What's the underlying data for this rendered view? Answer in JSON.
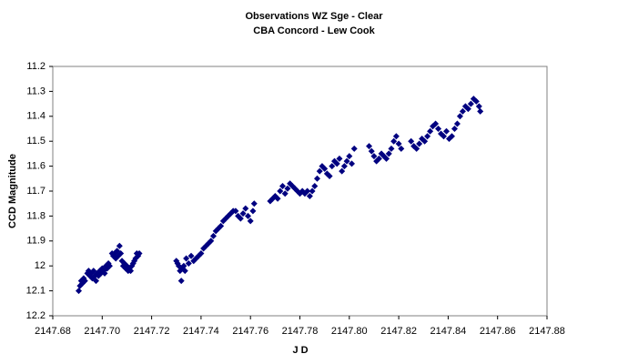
{
  "chart_data": {
    "type": "scatter",
    "title": "Observations WZ Sge - Clear",
    "subtitle": "CBA Concord - Lew Cook",
    "x_label": "J D",
    "y_label": "CCD Magnitude",
    "color": "#000080",
    "xlim": [
      2147.68,
      2147.88
    ],
    "xticks": [
      2147.68,
      {
        "value": 2147.7,
        "label": "2147.70"
      },
      2147.72,
      2147.74,
      2147.76,
      2147.78,
      {
        "value": 2147.8,
        "label": "2147.80"
      },
      2147.82,
      2147.84,
      2147.86,
      2147.88
    ],
    "ylim": [
      12.2,
      11.2
    ],
    "yticks": [
      11.2,
      11.3,
      11.4,
      11.5,
      11.6,
      11.7,
      11.8,
      11.9,
      12,
      12.1,
      12.2
    ],
    "grid": false,
    "x": [
      2147.6905,
      2147.691,
      2147.6915,
      2147.692,
      2147.6925,
      2147.693,
      2147.694,
      2147.6945,
      2147.695,
      2147.6955,
      2147.696,
      2147.6965,
      2147.697,
      2147.6975,
      2147.698,
      2147.6985,
      2147.699,
      2147.6995,
      2147.7,
      2147.7005,
      2147.701,
      2147.7015,
      2147.702,
      2147.7025,
      2147.703,
      2147.704,
      2147.7045,
      2147.705,
      2147.7055,
      2147.706,
      2147.7065,
      2147.707,
      2147.7075,
      2147.708,
      2147.7085,
      2147.709,
      2147.7095,
      2147.71,
      2147.7105,
      2147.711,
      2147.7115,
      2147.712,
      2147.7125,
      2147.713,
      2147.7135,
      2147.714,
      2147.7145,
      2147.715,
      2147.73,
      2147.7305,
      2147.731,
      2147.7315,
      2147.732,
      2147.7325,
      2147.733,
      2147.7335,
      2147.734,
      2147.735,
      2147.736,
      2147.737,
      2147.738,
      2147.739,
      2147.74,
      2147.741,
      2147.742,
      2147.743,
      2147.744,
      2147.745,
      2147.746,
      2147.747,
      2147.748,
      2147.749,
      2147.75,
      2147.751,
      2147.752,
      2147.753,
      2147.754,
      2147.755,
      2147.756,
      2147.757,
      2147.758,
      2147.759,
      2147.76,
      2147.761,
      2147.7615,
      2147.768,
      2147.769,
      2147.77,
      2147.771,
      2147.772,
      2147.773,
      2147.774,
      2147.775,
      2147.776,
      2147.777,
      2147.778,
      2147.779,
      2147.78,
      2147.781,
      2147.782,
      2147.783,
      2147.784,
      2147.785,
      2147.786,
      2147.787,
      2147.788,
      2147.789,
      2147.79,
      2147.791,
      2147.792,
      2147.793,
      2147.794,
      2147.795,
      2147.796,
      2147.797,
      2147.798,
      2147.799,
      2147.8,
      2147.801,
      2147.802,
      2147.808,
      2147.809,
      2147.81,
      2147.811,
      2147.812,
      2147.813,
      2147.814,
      2147.815,
      2147.816,
      2147.817,
      2147.818,
      2147.819,
      2147.82,
      2147.821,
      2147.825,
      2147.8261,
      2147.8272,
      2147.8283,
      2147.8294,
      2147.8305,
      2147.8316,
      2147.8327,
      2147.8338,
      2147.8349,
      2147.836,
      2147.8371,
      2147.8382,
      2147.8393,
      2147.8404,
      2147.8415,
      2147.8426,
      2147.8437,
      2147.8448,
      2147.8459,
      2147.847,
      2147.8481,
      2147.8492,
      2147.8503,
      2147.8514,
      2147.8525,
      2147.853
    ],
    "values": [
      12.1,
      12.08,
      12.06,
      12.07,
      12.05,
      12.06,
      12.03,
      12.02,
      12.04,
      12.03,
      12.05,
      12.02,
      12.04,
      12.06,
      12.03,
      12.04,
      12.02,
      12.03,
      12.01,
      12.02,
      12.03,
      12.0,
      12.01,
      11.99,
      12.0,
      11.95,
      11.96,
      11.95,
      11.97,
      11.94,
      11.96,
      11.92,
      11.95,
      11.98,
      12.0,
      11.99,
      12.01,
      12.0,
      12.02,
      12.01,
      12.02,
      12.0,
      11.99,
      11.98,
      11.97,
      11.95,
      11.96,
      11.95,
      11.98,
      11.99,
      12.0,
      12.02,
      12.06,
      12.01,
      12.0,
      12.02,
      11.97,
      11.99,
      11.96,
      11.98,
      11.97,
      11.96,
      11.95,
      11.93,
      11.92,
      11.91,
      11.9,
      11.88,
      11.86,
      11.85,
      11.84,
      11.82,
      11.81,
      11.8,
      11.79,
      11.78,
      11.78,
      11.8,
      11.81,
      11.79,
      11.77,
      11.8,
      11.82,
      11.78,
      11.75,
      11.74,
      11.73,
      11.72,
      11.73,
      11.7,
      11.68,
      11.71,
      11.69,
      11.67,
      11.68,
      11.69,
      11.7,
      11.71,
      11.7,
      11.71,
      11.7,
      11.72,
      11.7,
      11.68,
      11.65,
      11.62,
      11.6,
      11.61,
      11.63,
      11.64,
      11.6,
      11.58,
      11.59,
      11.57,
      11.62,
      11.6,
      11.58,
      11.56,
      11.59,
      11.53,
      11.52,
      11.54,
      11.56,
      11.58,
      11.57,
      11.55,
      11.56,
      11.57,
      11.55,
      11.53,
      11.5,
      11.48,
      11.51,
      11.53,
      11.5,
      11.52,
      11.53,
      11.51,
      11.49,
      11.5,
      11.48,
      11.46,
      11.44,
      11.43,
      11.45,
      11.47,
      11.48,
      11.46,
      11.49,
      11.48,
      11.45,
      11.43,
      11.4,
      11.38,
      11.36,
      11.37,
      11.35,
      11.33,
      11.34,
      11.36,
      11.38
    ]
  }
}
